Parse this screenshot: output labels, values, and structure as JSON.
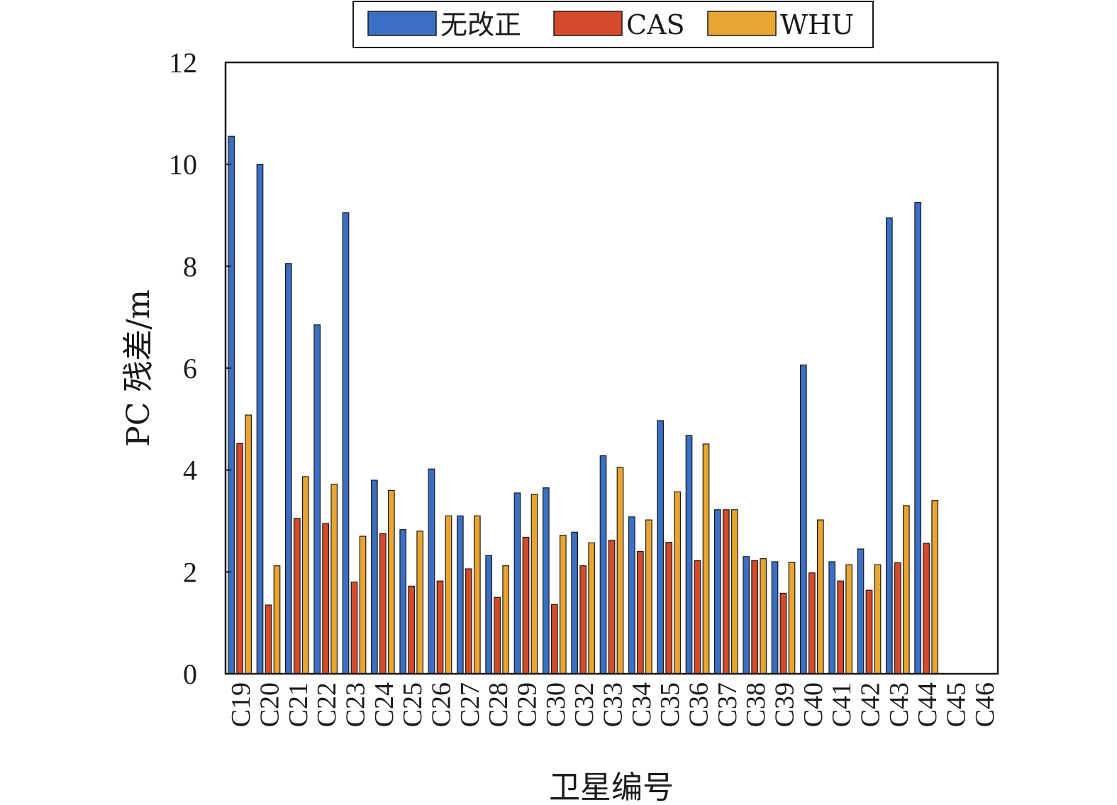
{
  "chart_data": {
    "type": "bar",
    "xlabel": "卫星编号",
    "ylabel": "PC 残差/m",
    "ylim": [
      0,
      12
    ],
    "yticks": [
      0,
      2,
      4,
      6,
      8,
      10,
      12
    ],
    "grid": false,
    "legend_position": "top-center",
    "categories": [
      "C19",
      "C20",
      "C21",
      "C22",
      "C23",
      "C24",
      "C25",
      "C26",
      "C27",
      "C28",
      "C29",
      "C30",
      "C32",
      "C33",
      "C34",
      "C35",
      "C36",
      "C37",
      "C38",
      "C39",
      "C40",
      "C41",
      "C42",
      "C43",
      "C44",
      "C45",
      "C46"
    ],
    "series": [
      {
        "name": "无改正",
        "color": "#3a6fc4",
        "values": [
          10.55,
          10.0,
          8.05,
          6.85,
          9.05,
          3.8,
          2.83,
          4.02,
          3.1,
          2.32,
          3.55,
          3.65,
          2.78,
          4.28,
          3.08,
          4.97,
          4.68,
          3.22,
          2.3,
          2.2,
          6.06,
          2.2,
          2.45,
          8.95,
          9.25,
          0,
          0
        ]
      },
      {
        "name": "CAS",
        "color": "#d54a2a",
        "values": [
          4.52,
          1.35,
          3.05,
          2.95,
          1.8,
          2.75,
          1.72,
          1.82,
          2.06,
          1.5,
          2.68,
          1.36,
          2.12,
          2.62,
          2.4,
          2.58,
          2.22,
          3.22,
          2.22,
          1.58,
          1.98,
          1.82,
          1.64,
          2.18,
          2.56,
          0,
          0
        ]
      },
      {
        "name": "WHU",
        "color": "#e8a531",
        "values": [
          5.08,
          2.12,
          3.87,
          3.72,
          2.7,
          3.6,
          2.8,
          3.1,
          3.1,
          2.12,
          3.52,
          2.72,
          2.57,
          4.05,
          3.02,
          3.57,
          4.51,
          3.22,
          2.26,
          2.19,
          3.02,
          2.14,
          2.14,
          3.3,
          3.4,
          0,
          0
        ]
      }
    ]
  }
}
